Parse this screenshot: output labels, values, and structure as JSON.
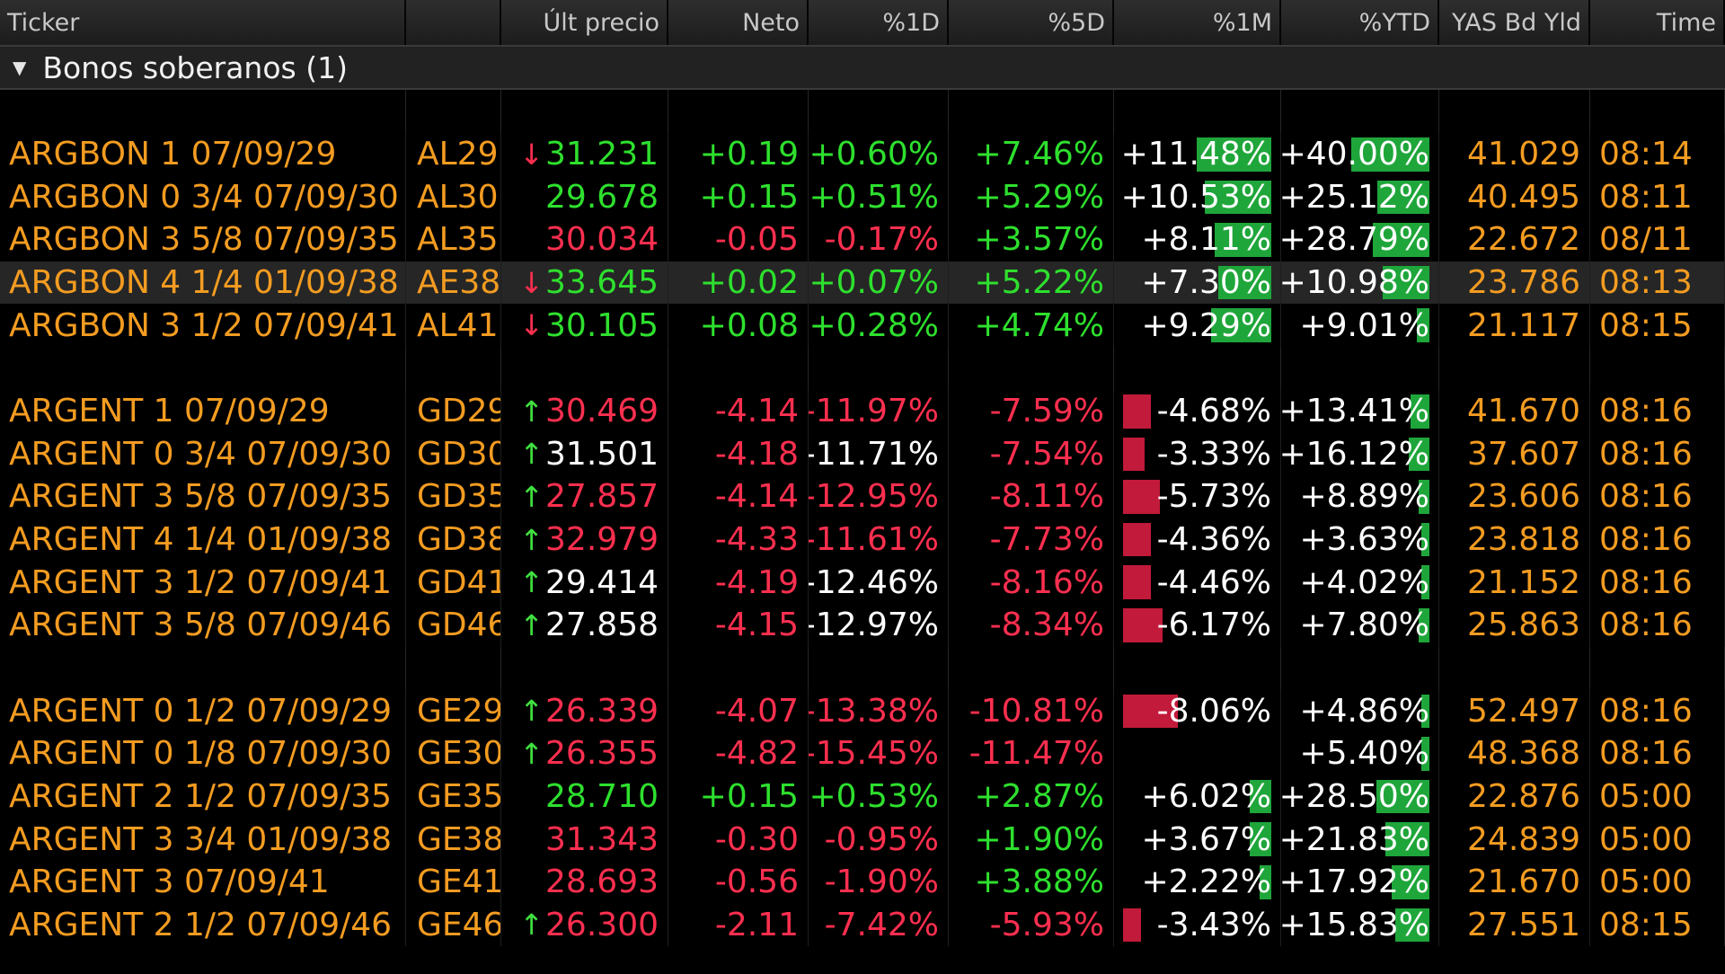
{
  "columns": [
    "Ticker",
    "",
    "Últ precio",
    "Neto",
    "%1D",
    "%5D",
    "%1M",
    "%YTD",
    "YAS Bd Yld",
    "Time"
  ],
  "group": {
    "title": "Bonos soberanos (1)"
  },
  "sections": [
    {
      "rows": [
        {
          "name": "ARGBON 1 07/09/29",
          "code": "AL29",
          "arrow": "down",
          "price": "31.231",
          "price_color": "pos",
          "net": "+0.19",
          "d1": "+0.60%",
          "d1_color": "pos",
          "d5": "+7.46%",
          "d5_color": "pos",
          "m1": "+11.48%",
          "m1_bar": 0.45,
          "ytd": "+40.00%",
          "ytd_bar": 0.5,
          "yld": "41.029",
          "time": "08:14"
        },
        {
          "name": "ARGBON 0 3/4 07/09/30",
          "code": "AL30",
          "arrow": "",
          "price": "29.678",
          "price_color": "pos",
          "net": "+0.15",
          "d1": "+0.51%",
          "d1_color": "pos",
          "d5": "+5.29%",
          "d5_color": "pos",
          "m1": "+10.53%",
          "m1_bar": 0.4,
          "ytd": "+25.12%",
          "ytd_bar": 0.33,
          "yld": "40.495",
          "time": "08:11"
        },
        {
          "name": "ARGBON 3 5/8 07/09/35",
          "code": "AL35",
          "arrow": "",
          "price": "30.034",
          "price_color": "neg",
          "net": "-0.05",
          "d1": "-0.17%",
          "d1_color": "neg",
          "d5": "+3.57%",
          "d5_color": "pos",
          "m1": "+8.11%",
          "m1_bar": 0.34,
          "ytd": "+28.79%",
          "ytd_bar": 0.36,
          "yld": "22.672",
          "time": "08/11"
        },
        {
          "name": "ARGBON 4 1/4 01/09/38",
          "code": "AE38",
          "arrow": "down",
          "price": "33.645",
          "price_color": "pos",
          "net": "+0.02",
          "d1": "+0.07%",
          "d1_color": "pos",
          "d5": "+5.22%",
          "d5_color": "pos",
          "m1": "+7.30%",
          "m1_bar": 0.32,
          "ytd": "+10.98%",
          "ytd_bar": 0.3,
          "yld": "23.786",
          "time": "08:13",
          "selected": true
        },
        {
          "name": "ARGBON 3 1/2 07/09/41",
          "code": "AL41",
          "arrow": "down",
          "price": "30.105",
          "price_color": "pos",
          "net": "+0.08",
          "d1": "+0.28%",
          "d1_color": "pos",
          "d5": "+4.74%",
          "d5_color": "pos",
          "m1": "+9.29%",
          "m1_bar": 0.36,
          "ytd": "+9.01%",
          "ytd_bar": 0.08,
          "yld": "21.117",
          "time": "08:15"
        }
      ]
    },
    {
      "rows": [
        {
          "name": "ARGENT 1 07/09/29",
          "code": "GD29",
          "arrow": "up",
          "price": "30.469",
          "price_color": "neg",
          "net": "-4.14",
          "d1": "-11.97%",
          "d1_color": "neg",
          "d5": "-7.59%",
          "d5_color": "neg",
          "m1": "-4.68%",
          "m1_bar": -0.17,
          "ytd": "+13.41%",
          "ytd_bar": 0.12,
          "yld": "41.670",
          "time": "08:16"
        },
        {
          "name": "ARGENT 0 3/4 07/09/30",
          "code": "GD30",
          "arrow": "up",
          "price": "31.501",
          "price_color": "neu",
          "net": "-4.18",
          "d1": "-11.71%",
          "d1_color": "neu",
          "d5": "-7.54%",
          "d5_color": "neg",
          "m1": "-3.33%",
          "m1_bar": -0.13,
          "ytd": "+16.12%",
          "ytd_bar": 0.13,
          "yld": "37.607",
          "time": "08:16"
        },
        {
          "name": "ARGENT 3 5/8 07/09/35",
          "code": "GD35",
          "arrow": "up",
          "price": "27.857",
          "price_color": "neg",
          "net": "-4.14",
          "d1": "-12.95%",
          "d1_color": "neg",
          "d5": "-8.11%",
          "d5_color": "neg",
          "m1": "-5.73%",
          "m1_bar": -0.22,
          "ytd": "+8.89%",
          "ytd_bar": 0.07,
          "yld": "23.606",
          "time": "08:16"
        },
        {
          "name": "ARGENT 4 1/4 01/09/38",
          "code": "GD38",
          "arrow": "up",
          "price": "32.979",
          "price_color": "neg",
          "net": "-4.33",
          "d1": "-11.61%",
          "d1_color": "neg",
          "d5": "-7.73%",
          "d5_color": "neg",
          "m1": "-4.36%",
          "m1_bar": -0.17,
          "ytd": "+3.63%",
          "ytd_bar": 0.05,
          "yld": "23.818",
          "time": "08:16"
        },
        {
          "name": "ARGENT 3 1/2 07/09/41",
          "code": "GD41",
          "arrow": "up",
          "price": "29.414",
          "price_color": "neu",
          "net": "-4.19",
          "d1": "-12.46%",
          "d1_color": "neu",
          "d5": "-8.16%",
          "d5_color": "neg",
          "m1": "-4.46%",
          "m1_bar": -0.17,
          "ytd": "+4.02%",
          "ytd_bar": 0.05,
          "yld": "21.152",
          "time": "08:16"
        },
        {
          "name": "ARGENT 3 5/8 07/09/46",
          "code": "GD46",
          "arrow": "up",
          "price": "27.858",
          "price_color": "neu",
          "net": "-4.15",
          "d1": "-12.97%",
          "d1_color": "neu",
          "d5": "-8.34%",
          "d5_color": "neg",
          "m1": "-6.17%",
          "m1_bar": -0.24,
          "ytd": "+7.80%",
          "ytd_bar": 0.07,
          "yld": "25.863",
          "time": "08:16"
        }
      ]
    },
    {
      "rows": [
        {
          "name": "ARGENT 0 1/2 07/09/29",
          "code": "GE29",
          "arrow": "up",
          "price": "26.339",
          "price_color": "neg",
          "net": "-4.07",
          "d1": "-13.38%",
          "d1_color": "neg",
          "d5": "-10.81%",
          "d5_color": "neg",
          "m1": "-8.06%",
          "m1_bar": -0.33,
          "ytd": "+4.86%",
          "ytd_bar": 0.05,
          "yld": "52.497",
          "time": "08:16"
        },
        {
          "name": "ARGENT 0 1/8 07/09/30",
          "code": "GE30",
          "arrow": "up",
          "price": "26.355",
          "price_color": "neg",
          "net": "-4.82",
          "d1": "-15.45%",
          "d1_color": "neg",
          "d5": "-11.47%",
          "d5_color": "neg",
          "m1": "",
          "m1_bar": 0,
          "ytd": "+5.40%",
          "ytd_bar": 0.05,
          "yld": "48.368",
          "time": "08:16"
        },
        {
          "name": "ARGENT 2 1/2 07/09/35",
          "code": "GE35",
          "arrow": "",
          "price": "28.710",
          "price_color": "pos",
          "net": "+0.15",
          "d1": "+0.53%",
          "d1_color": "pos",
          "d5": "+2.87%",
          "d5_color": "pos",
          "m1": "+6.02%",
          "m1_bar": 0.13,
          "ytd": "+28.50%",
          "ytd_bar": 0.34,
          "yld": "22.876",
          "time": "05:00"
        },
        {
          "name": "ARGENT 3 3/4 01/09/38",
          "code": "GE38",
          "arrow": "",
          "price": "31.343",
          "price_color": "neg",
          "net": "-0.30",
          "d1": "-0.95%",
          "d1_color": "neg",
          "d5": "+1.90%",
          "d5_color": "pos",
          "m1": "+3.67%",
          "m1_bar": 0.13,
          "ytd": "+21.83%",
          "ytd_bar": 0.28,
          "yld": "24.839",
          "time": "05:00"
        },
        {
          "name": "ARGENT 3 07/09/41",
          "code": "GE41",
          "arrow": "",
          "price": "28.693",
          "price_color": "neg",
          "net": "-0.56",
          "d1": "-1.90%",
          "d1_color": "neg",
          "d5": "+3.88%",
          "d5_color": "pos",
          "m1": "+2.22%",
          "m1_bar": 0.07,
          "ytd": "+17.92%",
          "ytd_bar": 0.24,
          "yld": "21.670",
          "time": "05:00"
        },
        {
          "name": "ARGENT 2 1/2 07/09/46",
          "code": "GE46",
          "arrow": "up",
          "price": "26.300",
          "price_color": "neg",
          "net": "-2.11",
          "d1": "-7.42%",
          "d1_color": "neg",
          "d5": "-5.93%",
          "d5_color": "neg",
          "m1": "-3.43%",
          "m1_bar": -0.11,
          "ytd": "+15.83%",
          "ytd_bar": 0.22,
          "yld": "27.551",
          "time": "08:15"
        }
      ]
    }
  ],
  "colors": {
    "positive": "#2ee02e",
    "negative": "#ff2f4f",
    "ticker": "#f39c21",
    "bar_positive": "#1fa63a",
    "bar_negative": "#c21a3a"
  }
}
